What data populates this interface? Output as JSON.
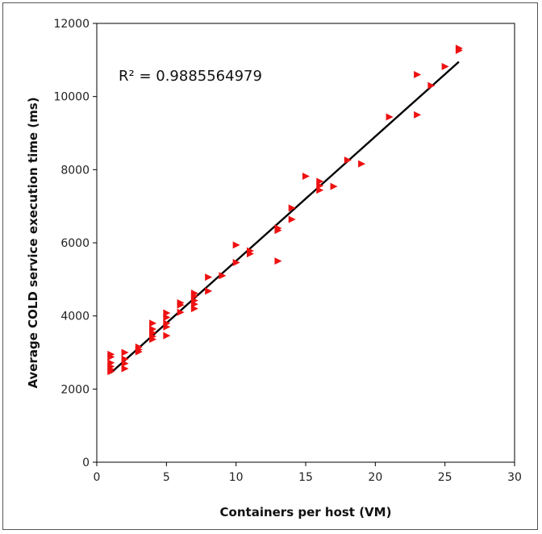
{
  "chart_data": {
    "type": "scatter",
    "xlabel": "Containers per host (VM)",
    "ylabel": "Average COLD service execution time (ms)",
    "xlim": [
      0,
      30
    ],
    "ylim": [
      0,
      12000
    ],
    "xticks": [
      0,
      5,
      10,
      15,
      20,
      25,
      30
    ],
    "yticks": [
      0,
      2000,
      4000,
      6000,
      8000,
      10000,
      12000
    ],
    "annotation": "R² = 0.9885564979",
    "grid": false,
    "colors": {
      "points": "#ee1111",
      "fit": "#000000"
    },
    "marker": "triangle-right",
    "fit_line": {
      "x": [
        1,
        26
      ],
      "y": [
        2440,
        10950
      ]
    },
    "points": [
      [
        1,
        2950
      ],
      [
        1,
        2880
      ],
      [
        1,
        2720
      ],
      [
        1,
        2620
      ],
      [
        1,
        2540
      ],
      [
        1,
        2480
      ],
      [
        2,
        3000
      ],
      [
        2,
        2820
      ],
      [
        2,
        2700
      ],
      [
        2,
        2560
      ],
      [
        3,
        3150
      ],
      [
        3,
        3080
      ],
      [
        3,
        3020
      ],
      [
        4,
        3800
      ],
      [
        4,
        3640
      ],
      [
        4,
        3540
      ],
      [
        4,
        3440
      ],
      [
        4,
        3360
      ],
      [
        5,
        4080
      ],
      [
        5,
        3960
      ],
      [
        5,
        3800
      ],
      [
        5,
        3700
      ],
      [
        5,
        3460
      ],
      [
        6,
        4360
      ],
      [
        6,
        4300
      ],
      [
        6,
        4100
      ],
      [
        7,
        4620
      ],
      [
        7,
        4540
      ],
      [
        7,
        4420
      ],
      [
        7,
        4320
      ],
      [
        7,
        4200
      ],
      [
        8,
        5060
      ],
      [
        8,
        4680
      ],
      [
        9,
        5100
      ],
      [
        10,
        5940
      ],
      [
        10,
        5460
      ],
      [
        11,
        5780
      ],
      [
        11,
        5700
      ],
      [
        13,
        6400
      ],
      [
        13,
        6340
      ],
      [
        13,
        5500
      ],
      [
        14,
        6950
      ],
      [
        14,
        6640
      ],
      [
        15,
        7820
      ],
      [
        16,
        7680
      ],
      [
        16,
        7560
      ],
      [
        16,
        7440
      ],
      [
        17,
        7540
      ],
      [
        18,
        8260
      ],
      [
        19,
        8160
      ],
      [
        21,
        9440
      ],
      [
        23,
        10600
      ],
      [
        23,
        9500
      ],
      [
        24,
        10300
      ],
      [
        25,
        10820
      ],
      [
        26,
        11320
      ],
      [
        26,
        11260
      ]
    ]
  }
}
